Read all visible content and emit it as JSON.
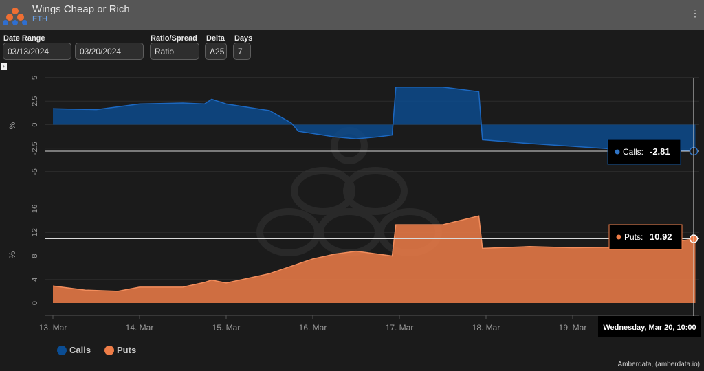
{
  "header": {
    "title": "Wings Cheap or Rich",
    "subtitle": "ETH",
    "menu_glyph": "⋮"
  },
  "filters": {
    "date_range_label": "Date Range",
    "start_date": "03/13/2024",
    "end_date": "03/20/2024",
    "ratio_label": "Ratio/Spread",
    "ratio_value": "Ratio",
    "delta_label": "Delta",
    "delta_value": "Δ25",
    "days_label": "Days",
    "days_value": "7",
    "collapse_glyph": "›"
  },
  "colors": {
    "calls": "#0b4d93",
    "puts": "#ee7d48",
    "background": "#1b1b1b"
  },
  "chart_data": [
    {
      "type": "area",
      "series": [
        {
          "name": "Calls",
          "x": [
            "2024-03-13 00:00",
            "2024-03-13 12:00",
            "2024-03-14 00:00",
            "2024-03-14 12:00",
            "2024-03-14 18:00",
            "2024-03-14 20:00",
            "2024-03-15 00:00",
            "2024-03-15 12:00",
            "2024-03-15 18:00",
            "2024-03-15 20:00",
            "2024-03-16 06:00",
            "2024-03-16 12:00",
            "2024-03-16 18:00",
            "2024-03-16 22:00",
            "2024-03-16 23:00",
            "2024-03-17 12:00",
            "2024-03-17 22:00",
            "2024-03-17 23:00",
            "2024-03-18 12:00",
            "2024-03-19 00:00",
            "2024-03-19 12:00",
            "2024-03-20 00:00",
            "2024-03-20 10:00"
          ],
          "values": [
            1.7,
            1.6,
            2.2,
            2.3,
            2.2,
            2.7,
            2.2,
            1.5,
            0.2,
            -0.7,
            -1.3,
            -1.5,
            -1.3,
            -1.1,
            4.0,
            4.0,
            3.5,
            -1.6,
            -2.0,
            -2.3,
            -2.6,
            -2.7,
            -2.81
          ]
        }
      ],
      "ylabel": "%",
      "y_ticks": [
        "5",
        "2.5",
        "0",
        "-2.5",
        "-5"
      ],
      "ylim": [
        -5,
        5
      ],
      "tooltip": {
        "label": "Calls:",
        "value": "-2.81"
      }
    },
    {
      "type": "area",
      "series": [
        {
          "name": "Puts",
          "x": [
            "2024-03-13 00:00",
            "2024-03-13 09:00",
            "2024-03-13 18:00",
            "2024-03-14 00:00",
            "2024-03-14 12:00",
            "2024-03-14 18:00",
            "2024-03-14 20:00",
            "2024-03-15 00:00",
            "2024-03-15 12:00",
            "2024-03-16 00:00",
            "2024-03-16 06:00",
            "2024-03-16 12:00",
            "2024-03-16 22:00",
            "2024-03-16 23:00",
            "2024-03-17 12:00",
            "2024-03-17 22:00",
            "2024-03-17 23:00",
            "2024-03-18 12:00",
            "2024-03-19 00:00",
            "2024-03-19 12:00",
            "2024-03-20 00:00",
            "2024-03-20 10:00"
          ],
          "values": [
            2.9,
            2.2,
            2.0,
            2.7,
            2.7,
            3.5,
            3.9,
            3.4,
            5.0,
            7.5,
            8.3,
            8.8,
            8.0,
            13.3,
            13.3,
            14.8,
            9.3,
            9.6,
            9.4,
            9.5,
            10.0,
            10.92
          ]
        }
      ],
      "ylabel": "%",
      "y_ticks": [
        "16",
        "12",
        "8",
        "4",
        "0"
      ],
      "ylim": [
        0,
        16
      ],
      "tooltip": {
        "label": "Puts:",
        "value": "10.92"
      }
    }
  ],
  "x_axis": {
    "tick_labels": [
      "13. Mar",
      "14. Mar",
      "15. Mar",
      "16. Mar",
      "17. Mar",
      "18. Mar",
      "19. Mar"
    ],
    "crosshair_label": "Wednesday, Mar 20, 10:00"
  },
  "legend": {
    "calls_label": "Calls",
    "puts_label": "Puts"
  },
  "credit": "Amberdata, (amberdata.io)"
}
